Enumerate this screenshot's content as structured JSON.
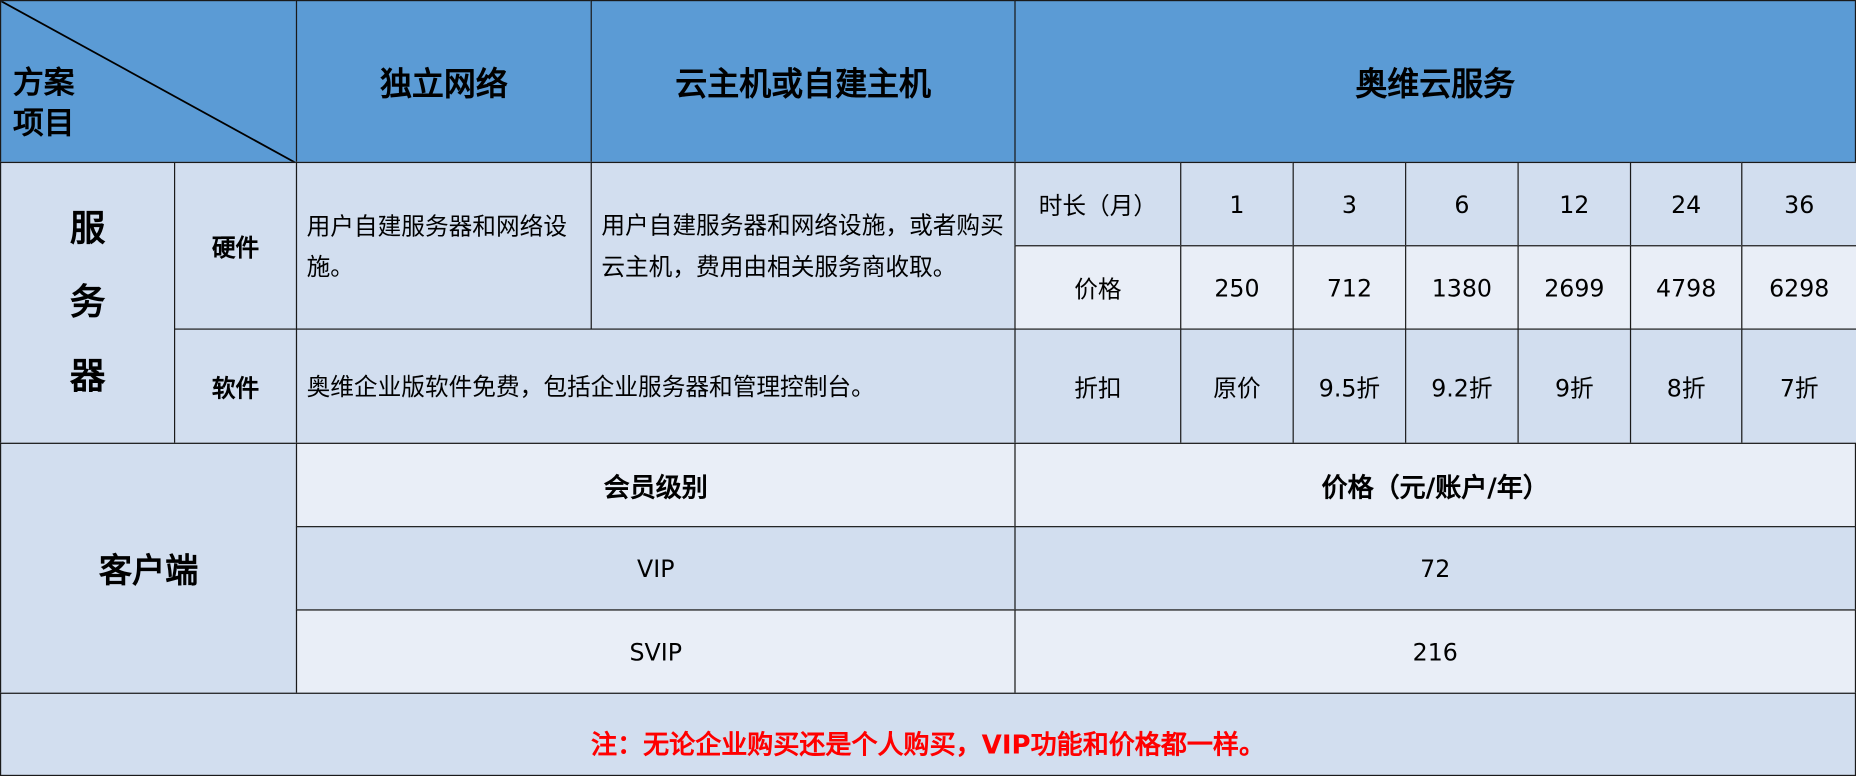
{
  "corner": {
    "top": "方案",
    "bottom": "项目"
  },
  "headers": [
    "独立网络",
    "云主机或自建主机",
    "奥维云服务"
  ],
  "server": {
    "label_chars": [
      "服",
      "务",
      "器"
    ],
    "hardware_label": "硬件",
    "software_label": "软件",
    "hardware_independent": "用户自建服务器和网络设施。",
    "hardware_cloud": "用户自建服务器和网络设施，或者购买云主机，费用由相关服务商收取。",
    "software_text": "奥维企业版软件免费，包括企业服务器和管理控制台。"
  },
  "pricing": {
    "duration_label": "时长（月）",
    "price_label": "价格",
    "discount_label": "折扣",
    "durations": [
      "1",
      "3",
      "6",
      "12",
      "24",
      "36"
    ],
    "prices": [
      "250",
      "712",
      "1380",
      "2699",
      "4798",
      "6298"
    ],
    "discounts": [
      "原价",
      "9.5折",
      "9.2折",
      "9折",
      "8折",
      "7折"
    ]
  },
  "client": {
    "label": "客户端",
    "level_header": "会员级别",
    "price_header": "价格（元/账户/年）",
    "rows": [
      {
        "level": "VIP",
        "price": "72"
      },
      {
        "level": "SVIP",
        "price": "216"
      }
    ]
  },
  "note": {
    "text": "注：无论企业购买还是个人购买，VIP功能和价格都一样。",
    "color": "#ff0000"
  },
  "colors": {
    "header": "#5b9bd5",
    "light": "#d2deef",
    "lighter": "#e9eef7"
  }
}
